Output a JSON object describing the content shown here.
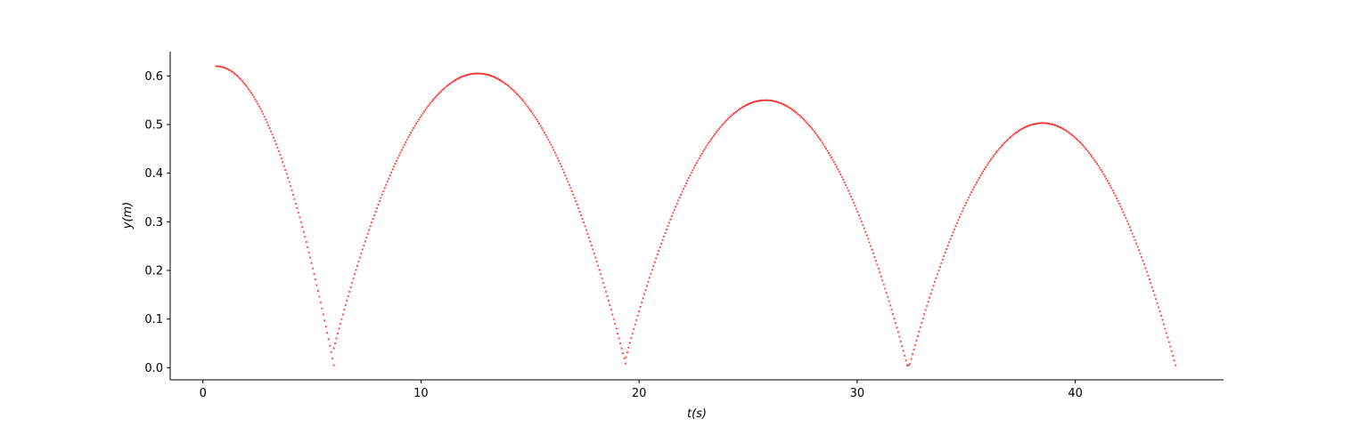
{
  "chart_data": {
    "type": "scatter",
    "xlabel": "t(s)",
    "ylabel": "y(m)",
    "xlim": [
      -1.5,
      46.8
    ],
    "ylim": [
      -0.025,
      0.65
    ],
    "xticks": [
      0,
      10,
      20,
      30,
      40
    ],
    "yticks": [
      0.0,
      0.1,
      0.2,
      0.3,
      0.4,
      0.5,
      0.6
    ],
    "xtick_labels": [
      "0",
      "10",
      "20",
      "30",
      "40"
    ],
    "ytick_labels": [
      "0.0",
      "0.1",
      "0.2",
      "0.3",
      "0.4",
      "0.5",
      "0.6"
    ],
    "grid": false,
    "color": "#ff0000",
    "point_shape": "small x marker",
    "sampling_interval_s": 0.06,
    "segments": [
      {
        "t_start": 0.6,
        "t_end": 6.0,
        "t_peak": 0.6,
        "y_peak": 0.62,
        "y_end": 0.005
      },
      {
        "t_start": 6.0,
        "t_end": 19.4,
        "t_peak": 12.6,
        "y_peak": 0.605,
        "y_end": 0.005
      },
      {
        "t_start": 19.4,
        "t_end": 32.3,
        "t_peak": 25.8,
        "y_peak": 0.55,
        "y_end": 0.005
      },
      {
        "t_start": 32.3,
        "t_end": 44.6,
        "t_peak": 38.5,
        "y_peak": 0.503,
        "y_end": 0.005
      }
    ]
  }
}
